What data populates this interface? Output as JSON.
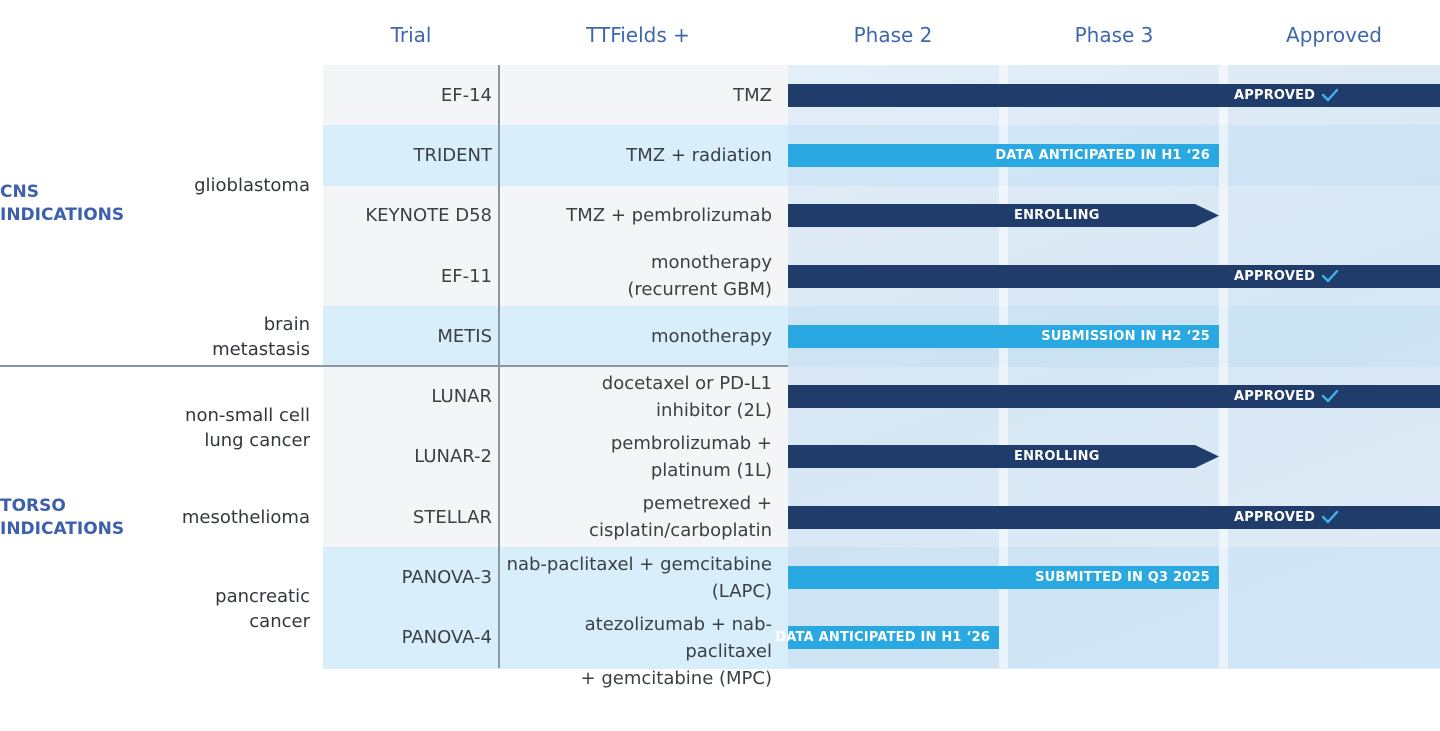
{
  "colors": {
    "heading": "#3f67ae",
    "dark_bar": "#1f3c6b",
    "light_bar": "#29a8e1"
  },
  "headers": {
    "trial": "Trial",
    "combo": "TTFields +",
    "phase2": "Phase 2",
    "phase3": "Phase 3",
    "approved": "Approved"
  },
  "groups": {
    "cns": "CNS\nINDICATIONS",
    "torso": "TORSO\nINDICATIONS"
  },
  "chart_data": {
    "type": "table",
    "stages": [
      "Phase 2",
      "Phase 3",
      "Approved"
    ],
    "indications": [
      {
        "name": "glioblastoma",
        "group": "CNS INDICATIONS"
      },
      {
        "name": "brain\nmetastasis",
        "group": "CNS INDICATIONS"
      },
      {
        "name": "non-small cell\nlung cancer",
        "group": "TORSO INDICATIONS"
      },
      {
        "name": "mesothelioma",
        "group": "TORSO INDICATIONS"
      },
      {
        "name": "pancreatic\ncancer",
        "group": "TORSO INDICATIONS"
      }
    ],
    "rows": [
      {
        "trial": "EF-14",
        "combo": "TMZ",
        "status": "APPROVED",
        "check": true,
        "stage_reached": "Approved",
        "style": "dark",
        "arrow": false
      },
      {
        "trial": "TRIDENT",
        "combo": "TMZ + radiation",
        "status": "DATA ANTICIPATED IN H1 ‘26",
        "check": false,
        "stage_reached": "Phase 3",
        "style": "light",
        "arrow": false
      },
      {
        "trial": "KEYNOTE D58",
        "combo": "TMZ + pembrolizumab",
        "status": "ENROLLING",
        "check": false,
        "stage_reached": "Phase 3",
        "style": "dark",
        "arrow": true
      },
      {
        "trial": "EF-11",
        "combo": "monotherapy\n(recurrent GBM)",
        "status": "APPROVED",
        "check": true,
        "stage_reached": "Approved",
        "style": "dark",
        "arrow": false
      },
      {
        "trial": "METIS",
        "combo": "monotherapy",
        "status": "SUBMISSION IN H2 ‘25",
        "check": false,
        "stage_reached": "Phase 3",
        "style": "light",
        "arrow": false
      },
      {
        "trial": "LUNAR",
        "combo": "docetaxel or PD-L1\ninhibitor (2L)",
        "status": "APPROVED",
        "check": true,
        "stage_reached": "Approved",
        "style": "dark",
        "arrow": false
      },
      {
        "trial": "LUNAR-2",
        "combo": "pembrolizumab +\nplatinum (1L)",
        "status": "ENROLLING",
        "check": false,
        "stage_reached": "Phase 3",
        "style": "dark",
        "arrow": true
      },
      {
        "trial": "STELLAR",
        "combo": "pemetrexed +\ncisplatin/carboplatin",
        "status": "APPROVED",
        "check": true,
        "stage_reached": "Approved",
        "style": "dark",
        "arrow": false
      },
      {
        "trial": "PANOVA-3",
        "combo": "nab-paclitaxel + gemcitabine\n(LAPC)",
        "status": "SUBMITTED IN Q3 2025",
        "check": false,
        "stage_reached": "Phase 3",
        "style": "light",
        "arrow": false
      },
      {
        "trial": "PANOVA-4",
        "combo": "atezolizumab + nab-paclitaxel\n+ gemcitabine (MPC)",
        "status": "DATA ANTICIPATED IN H1 ‘26",
        "check": false,
        "stage_reached": "Phase 2",
        "style": "light",
        "arrow": false
      }
    ]
  }
}
